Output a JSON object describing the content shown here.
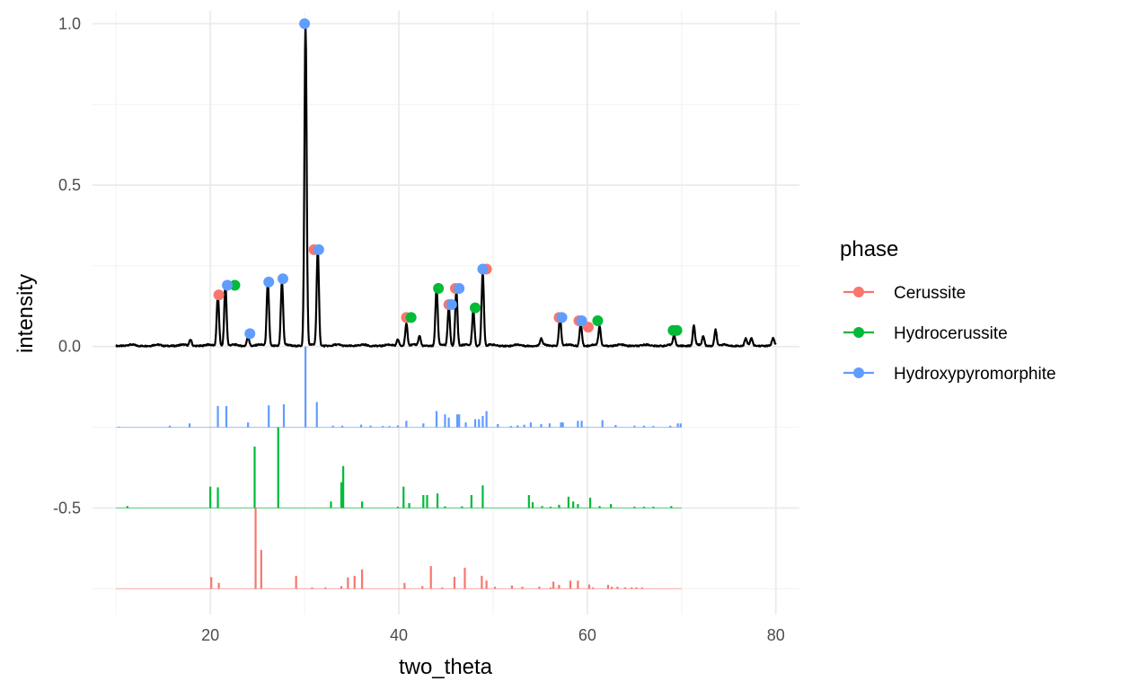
{
  "chart_data": {
    "type": "line",
    "xlabel": "two_theta",
    "ylabel": "intensity",
    "xlim": [
      7.5,
      82.5
    ],
    "ylim": [
      -0.83,
      1.04
    ],
    "x_ticks": [
      20,
      40,
      60,
      80
    ],
    "y_ticks": [
      -0.5,
      0.0,
      0.5,
      1.0
    ],
    "y_tick_labels": [
      "-0.5",
      "0.0",
      "0.5",
      "1.0"
    ],
    "grid": true,
    "legend": {
      "title": "phase",
      "placement": "right",
      "entries": [
        "Cerussite",
        "Hydrocerussite",
        "Hydroxypyromorphite"
      ]
    },
    "colors": {
      "Cerussite": "#F8766D",
      "Hydrocerussite": "#00BA38",
      "Hydroxypyromorphite": "#619CFF",
      "pattern": "#000000"
    },
    "pattern": {
      "baseline": 0.0,
      "range": [
        10,
        80
      ],
      "peaks": [
        [
          17.9,
          0.02
        ],
        [
          20.8,
          0.16
        ],
        [
          21.6,
          0.19
        ],
        [
          24.0,
          0.03
        ],
        [
          26.1,
          0.2
        ],
        [
          27.6,
          0.2
        ],
        [
          30.1,
          1.0
        ],
        [
          31.4,
          0.3
        ],
        [
          39.9,
          0.02
        ],
        [
          40.8,
          0.07
        ],
        [
          42.2,
          0.03
        ],
        [
          44.0,
          0.18
        ],
        [
          45.3,
          0.12
        ],
        [
          46.1,
          0.17
        ],
        [
          47.9,
          0.11
        ],
        [
          48.9,
          0.23
        ],
        [
          55.1,
          0.02
        ],
        [
          57.1,
          0.09
        ],
        [
          59.3,
          0.07
        ],
        [
          61.3,
          0.06
        ],
        [
          69.2,
          0.03
        ],
        [
          71.3,
          0.06
        ],
        [
          72.3,
          0.03
        ],
        [
          73.6,
          0.05
        ],
        [
          76.8,
          0.02
        ],
        [
          77.4,
          0.02
        ],
        [
          79.7,
          0.02
        ]
      ]
    },
    "peak_points": [
      {
        "phase": "Cerussite",
        "x": 20.9,
        "y": 0.16
      },
      {
        "phase": "Cerussite",
        "x": 31.0,
        "y": 0.3
      },
      {
        "phase": "Cerussite",
        "x": 40.8,
        "y": 0.09
      },
      {
        "phase": "Cerussite",
        "x": 45.3,
        "y": 0.13
      },
      {
        "phase": "Cerussite",
        "x": 46.0,
        "y": 0.18
      },
      {
        "phase": "Cerussite",
        "x": 49.3,
        "y": 0.24
      },
      {
        "phase": "Cerussite",
        "x": 57.0,
        "y": 0.09
      },
      {
        "phase": "Cerussite",
        "x": 59.1,
        "y": 0.08
      },
      {
        "phase": "Cerussite",
        "x": 60.1,
        "y": 0.06
      },
      {
        "phase": "Hydrocerussite",
        "x": 22.6,
        "y": 0.19
      },
      {
        "phase": "Hydrocerussite",
        "x": 41.3,
        "y": 0.09
      },
      {
        "phase": "Hydrocerussite",
        "x": 44.2,
        "y": 0.18
      },
      {
        "phase": "Hydrocerussite",
        "x": 48.1,
        "y": 0.12
      },
      {
        "phase": "Hydrocerussite",
        "x": 61.1,
        "y": 0.08
      },
      {
        "phase": "Hydrocerussite",
        "x": 69.1,
        "y": 0.05
      },
      {
        "phase": "Hydrocerussite",
        "x": 69.5,
        "y": 0.05
      },
      {
        "phase": "Hydroxypyromorphite",
        "x": 21.8,
        "y": 0.19
      },
      {
        "phase": "Hydroxypyromorphite",
        "x": 24.2,
        "y": 0.04
      },
      {
        "phase": "Hydroxypyromorphite",
        "x": 26.2,
        "y": 0.2
      },
      {
        "phase": "Hydroxypyromorphite",
        "x": 27.7,
        "y": 0.21
      },
      {
        "phase": "Hydroxypyromorphite",
        "x": 30.0,
        "y": 1.0
      },
      {
        "phase": "Hydroxypyromorphite",
        "x": 31.5,
        "y": 0.3
      },
      {
        "phase": "Hydroxypyromorphite",
        "x": 45.6,
        "y": 0.13
      },
      {
        "phase": "Hydroxypyromorphite",
        "x": 46.4,
        "y": 0.18
      },
      {
        "phase": "Hydroxypyromorphite",
        "x": 48.9,
        "y": 0.24
      },
      {
        "phase": "Hydroxypyromorphite",
        "x": 57.3,
        "y": 0.09
      },
      {
        "phase": "Hydroxypyromorphite",
        "x": 59.4,
        "y": 0.08
      }
    ],
    "reference_sticks": [
      {
        "phase": "Hydroxypyromorphite",
        "baseline": -0.25,
        "sticks": [
          [
            10.3,
            0.002
          ],
          [
            15.7,
            0.005
          ],
          [
            17.8,
            0.012
          ],
          [
            20.8,
            0.066
          ],
          [
            21.7,
            0.066
          ],
          [
            24.0,
            0.015
          ],
          [
            26.2,
            0.068
          ],
          [
            27.8,
            0.071
          ],
          [
            30.1,
            0.25
          ],
          [
            31.3,
            0.078
          ],
          [
            33.0,
            0.005
          ],
          [
            34.0,
            0.005
          ],
          [
            36.0,
            0.008
          ],
          [
            37.0,
            0.005
          ],
          [
            38.3,
            0.004
          ],
          [
            39.0,
            0.004
          ],
          [
            39.9,
            0.006
          ],
          [
            40.8,
            0.02
          ],
          [
            42.6,
            0.012
          ],
          [
            44.0,
            0.05
          ],
          [
            44.9,
            0.04
          ],
          [
            45.3,
            0.03
          ],
          [
            46.2,
            0.04
          ],
          [
            46.4,
            0.04
          ],
          [
            47.1,
            0.015
          ],
          [
            48.1,
            0.025
          ],
          [
            48.5,
            0.025
          ],
          [
            48.9,
            0.035
          ],
          [
            49.3,
            0.05
          ],
          [
            50.5,
            0.01
          ],
          [
            51.9,
            0.004
          ],
          [
            52.6,
            0.006
          ],
          [
            53.3,
            0.008
          ],
          [
            54.0,
            0.015
          ],
          [
            55.1,
            0.01
          ],
          [
            56.0,
            0.012
          ],
          [
            57.2,
            0.015
          ],
          [
            57.4,
            0.015
          ],
          [
            59.0,
            0.02
          ],
          [
            59.4,
            0.02
          ],
          [
            61.6,
            0.022
          ],
          [
            63.0,
            0.007
          ],
          [
            65.0,
            0.005
          ],
          [
            66.0,
            0.005
          ],
          [
            67.0,
            0.004
          ],
          [
            68.8,
            0.005
          ],
          [
            69.6,
            0.012
          ],
          [
            69.9,
            0.012
          ]
        ]
      },
      {
        "phase": "Hydrocerussite",
        "baseline": -0.5,
        "sticks": [
          [
            11.2,
            0.006
          ],
          [
            20.0,
            0.066
          ],
          [
            20.8,
            0.064
          ],
          [
            24.7,
            0.19
          ],
          [
            27.2,
            0.25
          ],
          [
            32.8,
            0.02
          ],
          [
            33.9,
            0.08
          ],
          [
            34.1,
            0.13
          ],
          [
            36.1,
            0.02
          ],
          [
            39.9,
            0.004
          ],
          [
            40.5,
            0.066
          ],
          [
            41.1,
            0.015
          ],
          [
            42.6,
            0.04
          ],
          [
            43.0,
            0.04
          ],
          [
            44.1,
            0.045
          ],
          [
            44.9,
            0.005
          ],
          [
            46.7,
            0.005
          ],
          [
            47.7,
            0.04
          ],
          [
            48.9,
            0.07
          ],
          [
            53.8,
            0.04
          ],
          [
            54.2,
            0.018
          ],
          [
            55.2,
            0.006
          ],
          [
            56.1,
            0.004
          ],
          [
            57.0,
            0.01
          ],
          [
            58.0,
            0.035
          ],
          [
            58.5,
            0.02
          ],
          [
            59.0,
            0.012
          ],
          [
            60.3,
            0.032
          ],
          [
            61.3,
            0.006
          ],
          [
            62.5,
            0.012
          ],
          [
            65.0,
            0.004
          ],
          [
            66.0,
            0.004
          ],
          [
            67.0,
            0.004
          ],
          [
            68.9,
            0.006
          ]
        ]
      },
      {
        "phase": "Cerussite",
        "baseline": -0.75,
        "sticks": [
          [
            20.1,
            0.036
          ],
          [
            20.9,
            0.018
          ],
          [
            24.8,
            0.25
          ],
          [
            25.4,
            0.12
          ],
          [
            29.1,
            0.04
          ],
          [
            30.8,
            0.004
          ],
          [
            32.2,
            0.004
          ],
          [
            33.9,
            0.008
          ],
          [
            34.6,
            0.035
          ],
          [
            35.3,
            0.04
          ],
          [
            36.1,
            0.06
          ],
          [
            40.6,
            0.018
          ],
          [
            42.5,
            0.008
          ],
          [
            43.4,
            0.07
          ],
          [
            44.6,
            0.004
          ],
          [
            45.9,
            0.037
          ],
          [
            47.0,
            0.065
          ],
          [
            48.8,
            0.04
          ],
          [
            49.3,
            0.025
          ],
          [
            50.2,
            0.006
          ],
          [
            52.0,
            0.01
          ],
          [
            53.1,
            0.006
          ],
          [
            54.9,
            0.006
          ],
          [
            56.1,
            0.004
          ],
          [
            56.4,
            0.022
          ],
          [
            57.0,
            0.012
          ],
          [
            58.2,
            0.025
          ],
          [
            59.0,
            0.025
          ],
          [
            60.2,
            0.013
          ],
          [
            60.6,
            0.004
          ],
          [
            62.2,
            0.012
          ],
          [
            62.6,
            0.006
          ],
          [
            63.2,
            0.006
          ],
          [
            64.0,
            0.004
          ],
          [
            64.7,
            0.004
          ],
          [
            65.2,
            0.004
          ],
          [
            65.8,
            0.004
          ]
        ]
      }
    ]
  }
}
